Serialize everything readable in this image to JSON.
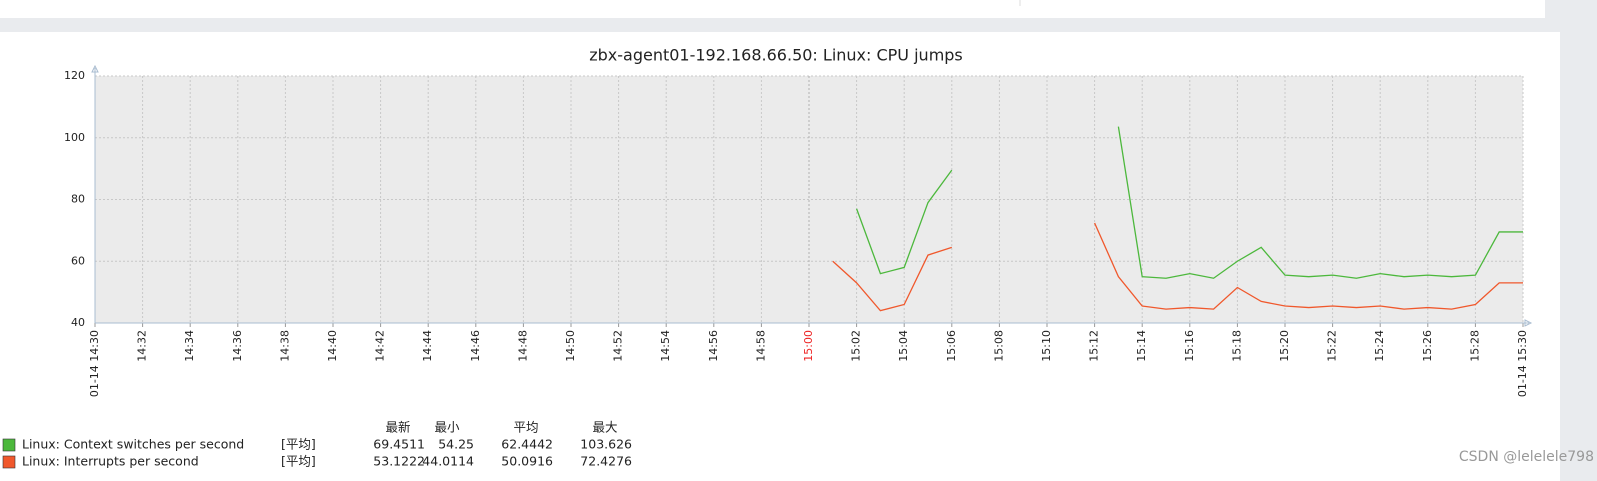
{
  "chart_data": {
    "type": "line",
    "title": "zbx-agent01-192.168.66.50: Linux: CPU jumps",
    "x": [
      "15:01",
      "15:02",
      "15:03",
      "15:04",
      "15:05",
      "15:06",
      "15:07",
      "15:08",
      "15:09",
      "15:10",
      "15:11",
      "15:12",
      "15:13",
      "15:14",
      "15:15",
      "15:16",
      "15:17",
      "15:18",
      "15:19",
      "15:20",
      "15:21",
      "15:22",
      "15:23",
      "15:24",
      "15:25",
      "15:26",
      "15:27",
      "15:28",
      "15:29",
      "15:30"
    ],
    "series": [
      {
        "name": "Linux: Context switches per second",
        "color": "#4cb83c",
        "values": [
          null,
          77,
          56,
          58,
          79,
          89.5,
          null,
          null,
          null,
          null,
          null,
          null,
          103.6,
          55,
          54.5,
          56,
          54.5,
          60,
          64.5,
          55.5,
          55,
          55.5,
          54.5,
          56,
          55,
          55.5,
          55,
          55.5,
          69.5,
          69.5
        ],
        "legend_stats": {
          "label": "[平均]",
          "values": [
            69.4511,
            54.25,
            62.4442,
            103.626
          ]
        }
      },
      {
        "name": "Linux: Interrupts per second",
        "color": "#f0582c",
        "values": [
          60,
          53,
          44,
          46,
          62,
          64.5,
          null,
          null,
          null,
          null,
          null,
          72.4,
          55,
          45.5,
          44.5,
          45,
          44.5,
          51.5,
          47,
          45.5,
          45,
          45.5,
          45,
          45.5,
          44.5,
          45,
          44.5,
          46,
          53,
          53
        ],
        "legend_stats": {
          "label": "[平均]",
          "values": [
            53.1222,
            44.0114,
            50.0916,
            72.4276
          ]
        }
      }
    ],
    "legend_headers": [
      "最新",
      "最小",
      "平均",
      "最大"
    ],
    "xlim": [
      "01-14 14:30",
      "01-14 15:30"
    ],
    "xticks": [
      "01-14 14:30",
      "14:32",
      "14:34",
      "14:36",
      "14:38",
      "14:40",
      "14:42",
      "14:44",
      "14:46",
      "14:48",
      "14:50",
      "14:52",
      "14:54",
      "14:56",
      "14:58",
      "15:00",
      "15:02",
      "15:04",
      "15:06",
      "15:08",
      "15:10",
      "15:12",
      "15:14",
      "15:16",
      "15:18",
      "15:20",
      "15:22",
      "15:24",
      "15:26",
      "15:28",
      "01-14 15:30"
    ],
    "hour_tick_color": "#ee2222",
    "ylim": [
      40,
      120
    ],
    "yticks": [
      40,
      60,
      80,
      100,
      120
    ],
    "grid": true
  },
  "watermark": "CSDN @lelelele798"
}
